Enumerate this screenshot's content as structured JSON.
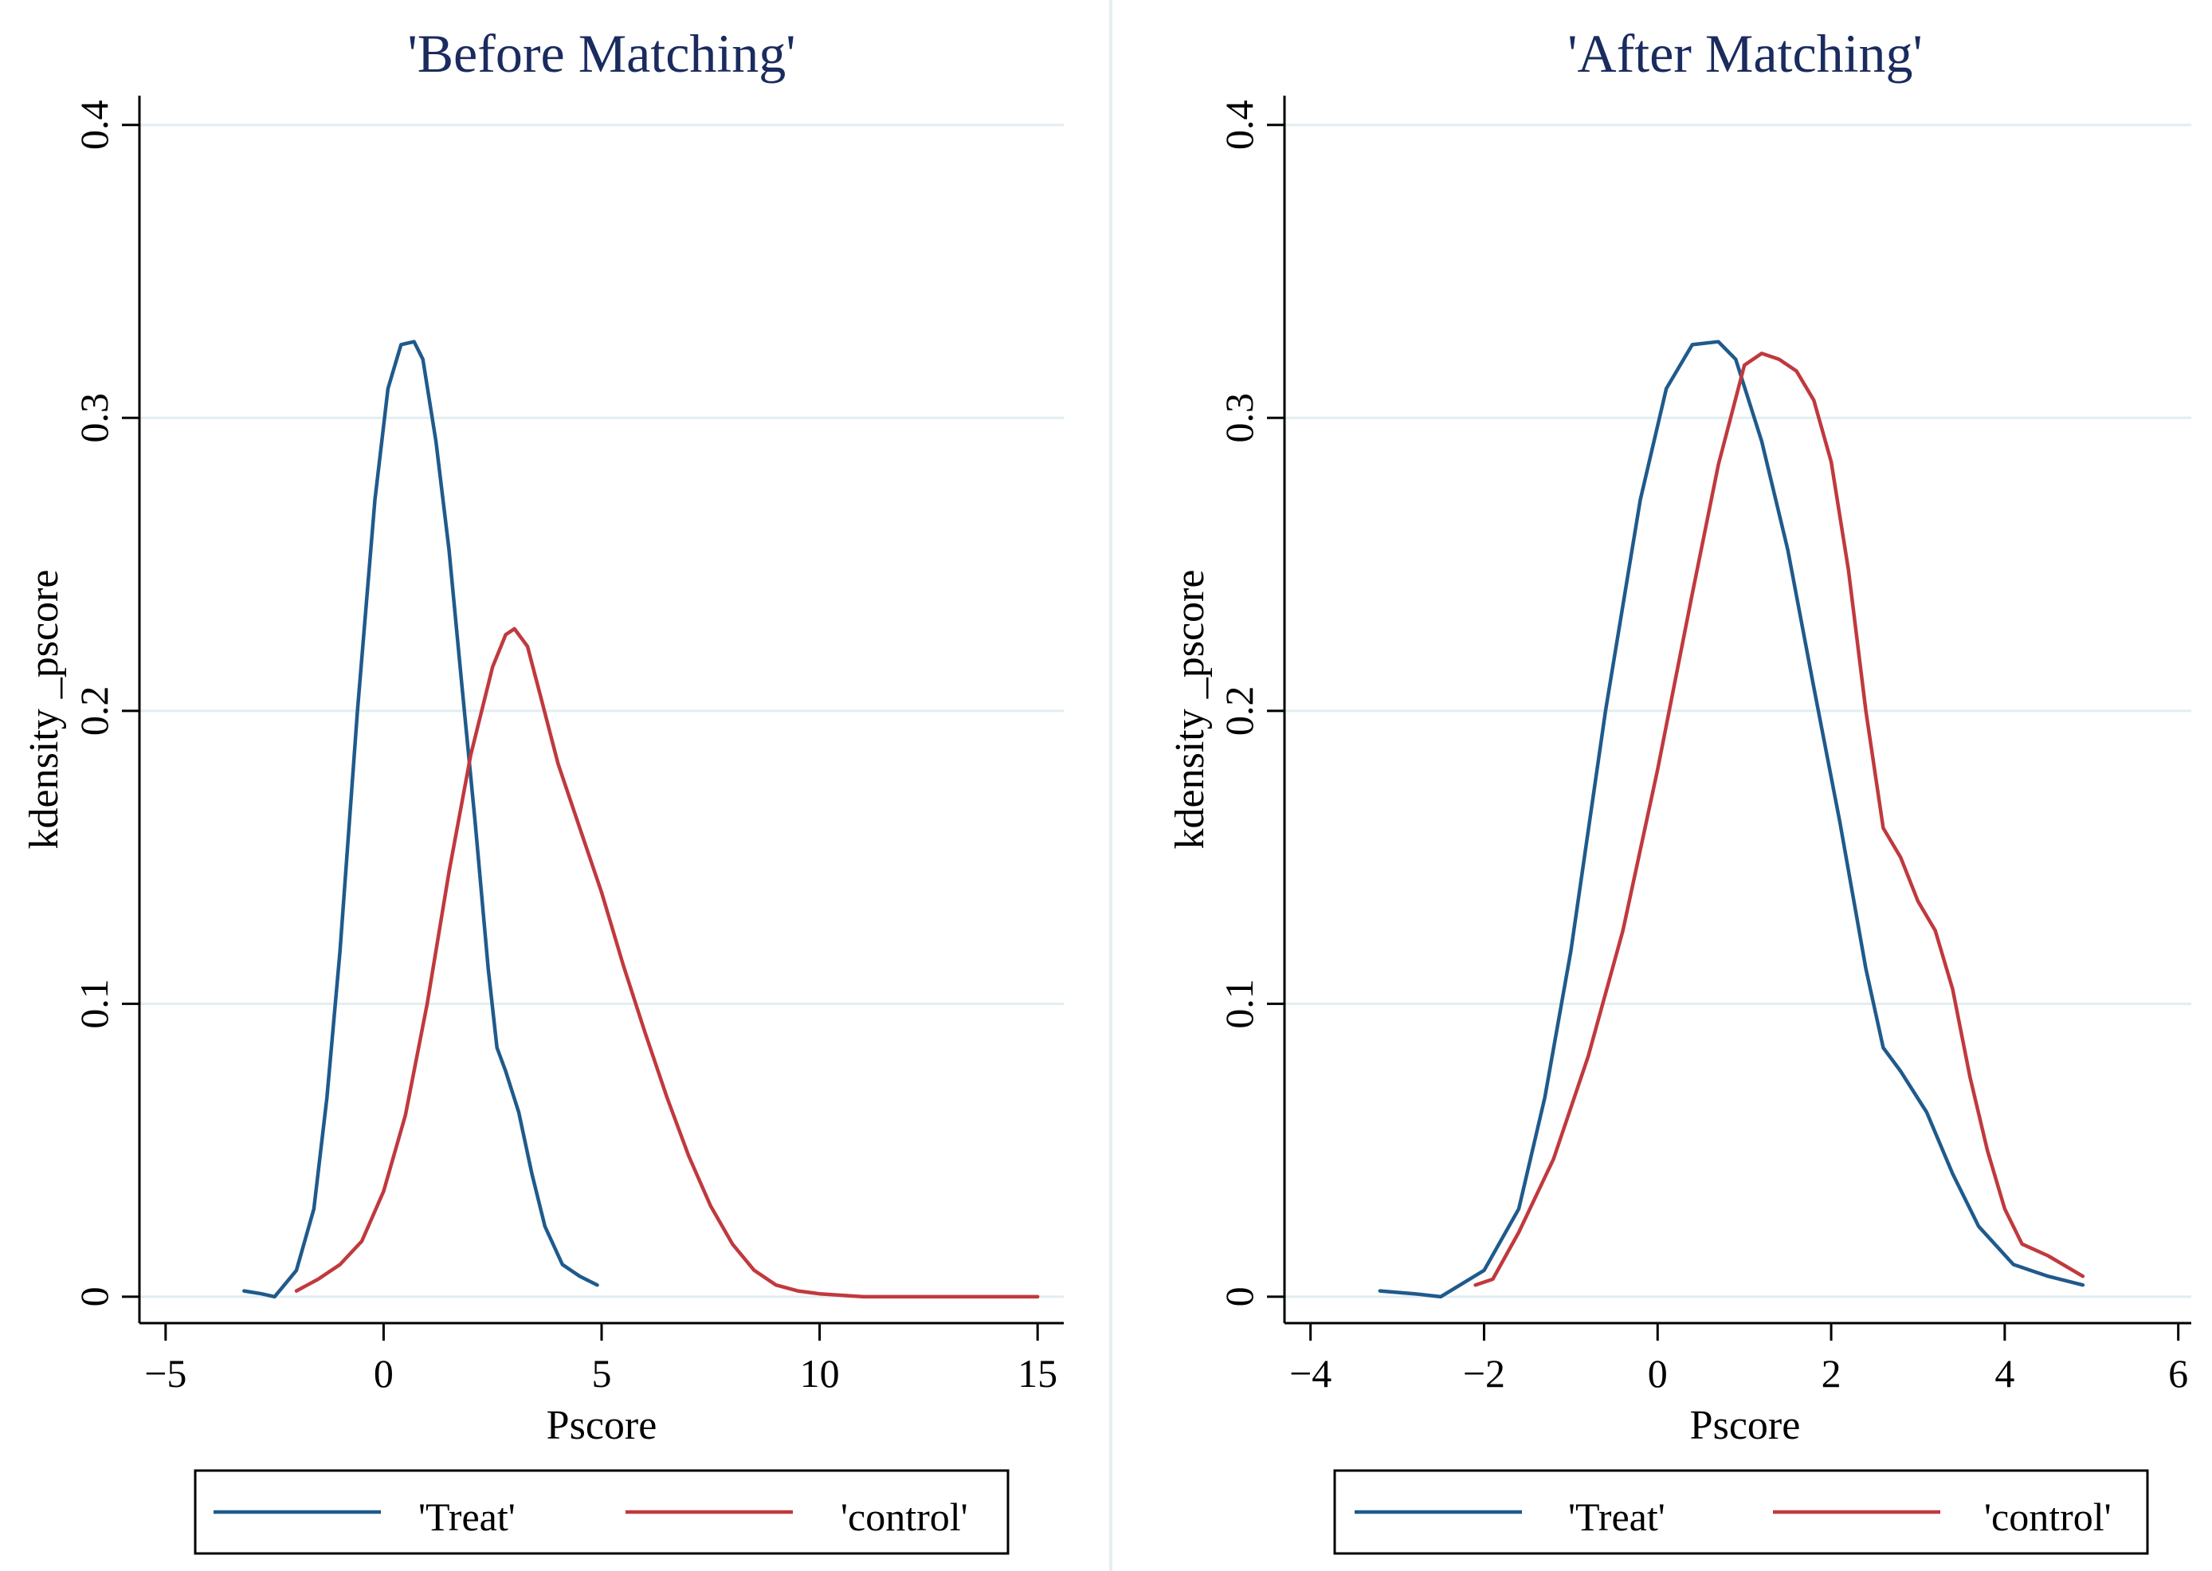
{
  "chart_data": [
    {
      "type": "line",
      "title": "'Before Matching'",
      "xlabel": "Pscore",
      "ylabel": "kdensity _pscore",
      "xlim": [
        -5.6,
        15.6
      ],
      "ylim": [
        -0.009,
        0.41
      ],
      "xticks": [
        -5,
        0,
        5,
        10,
        15
      ],
      "xtick_labels": [
        "−5",
        "0",
        "5",
        "10",
        "15"
      ],
      "yticks": [
        0,
        0.1,
        0.2,
        0.3,
        0.4
      ],
      "ytick_labels": [
        "0",
        "0.1",
        "0.2",
        "0.3",
        "0.4"
      ],
      "grid": true,
      "legend_position": "bottom",
      "series": [
        {
          "name": "'Treat'",
          "color": "#1f5a8c",
          "x": [
            -3.2,
            -2.8,
            -2.5,
            -2.0,
            -1.6,
            -1.3,
            -1.0,
            -0.6,
            -0.2,
            0.1,
            0.4,
            0.7,
            0.9,
            1.2,
            1.5,
            1.8,
            2.1,
            2.4,
            2.6,
            2.8,
            3.1,
            3.4,
            3.7,
            4.1,
            4.5,
            4.9
          ],
          "y": [
            0.002,
            0.001,
            0.0,
            0.009,
            0.03,
            0.068,
            0.118,
            0.2,
            0.272,
            0.31,
            0.325,
            0.326,
            0.32,
            0.292,
            0.255,
            0.208,
            0.162,
            0.112,
            0.085,
            0.077,
            0.063,
            0.042,
            0.024,
            0.011,
            0.007,
            0.004
          ]
        },
        {
          "name": "'control'",
          "color": "#c0393e",
          "x": [
            -2.0,
            -1.5,
            -1.0,
            -0.5,
            0.0,
            0.5,
            1.0,
            1.5,
            2.0,
            2.5,
            2.8,
            3.0,
            3.3,
            3.6,
            4.0,
            4.5,
            5.0,
            5.5,
            6.0,
            6.5,
            7.0,
            7.5,
            8.0,
            8.5,
            9.0,
            9.5,
            10.0,
            11.0,
            12.0,
            13.0,
            14.0,
            15.0
          ],
          "y": [
            0.002,
            0.006,
            0.011,
            0.019,
            0.036,
            0.062,
            0.1,
            0.145,
            0.185,
            0.215,
            0.226,
            0.228,
            0.222,
            0.205,
            0.182,
            0.16,
            0.138,
            0.113,
            0.09,
            0.068,
            0.048,
            0.031,
            0.018,
            0.009,
            0.004,
            0.002,
            0.001,
            0.0,
            0.0,
            0.0,
            0.0,
            0.0
          ]
        }
      ]
    },
    {
      "type": "line",
      "title": "'After Matching'",
      "xlabel": "Pscore",
      "ylabel": "kdensity _pscore",
      "xlim": [
        -4.3,
        6.15
      ],
      "ylim": [
        -0.009,
        0.41
      ],
      "xticks": [
        -4,
        -2,
        0,
        2,
        4,
        6
      ],
      "xtick_labels": [
        "−4",
        "−2",
        "0",
        "2",
        "4",
        "6"
      ],
      "yticks": [
        0,
        0.1,
        0.2,
        0.3,
        0.4
      ],
      "ytick_labels": [
        "0",
        "0.1",
        "0.2",
        "0.3",
        "0.4"
      ],
      "grid": true,
      "legend_position": "bottom",
      "series": [
        {
          "name": "'Treat'",
          "color": "#1f5a8c",
          "x": [
            -3.2,
            -2.8,
            -2.5,
            -2.0,
            -1.6,
            -1.3,
            -1.0,
            -0.6,
            -0.2,
            0.1,
            0.4,
            0.7,
            0.9,
            1.2,
            1.5,
            1.8,
            2.1,
            2.4,
            2.6,
            2.8,
            3.1,
            3.4,
            3.7,
            4.1,
            4.5,
            4.9
          ],
          "y": [
            0.002,
            0.001,
            0.0,
            0.009,
            0.03,
            0.068,
            0.118,
            0.2,
            0.272,
            0.31,
            0.325,
            0.326,
            0.32,
            0.292,
            0.255,
            0.208,
            0.162,
            0.112,
            0.085,
            0.077,
            0.063,
            0.042,
            0.024,
            0.011,
            0.007,
            0.004
          ]
        },
        {
          "name": "'control'",
          "color": "#c0393e",
          "x": [
            -2.1,
            -1.9,
            -1.6,
            -1.2,
            -0.8,
            -0.4,
            0.0,
            0.4,
            0.7,
            1.0,
            1.2,
            1.4,
            1.6,
            1.8,
            2.0,
            2.2,
            2.4,
            2.6,
            2.8,
            3.0,
            3.2,
            3.4,
            3.6,
            3.8,
            4.0,
            4.2,
            4.5,
            4.9
          ],
          "y": [
            0.004,
            0.006,
            0.022,
            0.047,
            0.082,
            0.125,
            0.18,
            0.24,
            0.284,
            0.318,
            0.322,
            0.32,
            0.316,
            0.306,
            0.285,
            0.248,
            0.2,
            0.16,
            0.15,
            0.135,
            0.125,
            0.105,
            0.075,
            0.05,
            0.03,
            0.018,
            0.014,
            0.007
          ]
        }
      ]
    }
  ]
}
